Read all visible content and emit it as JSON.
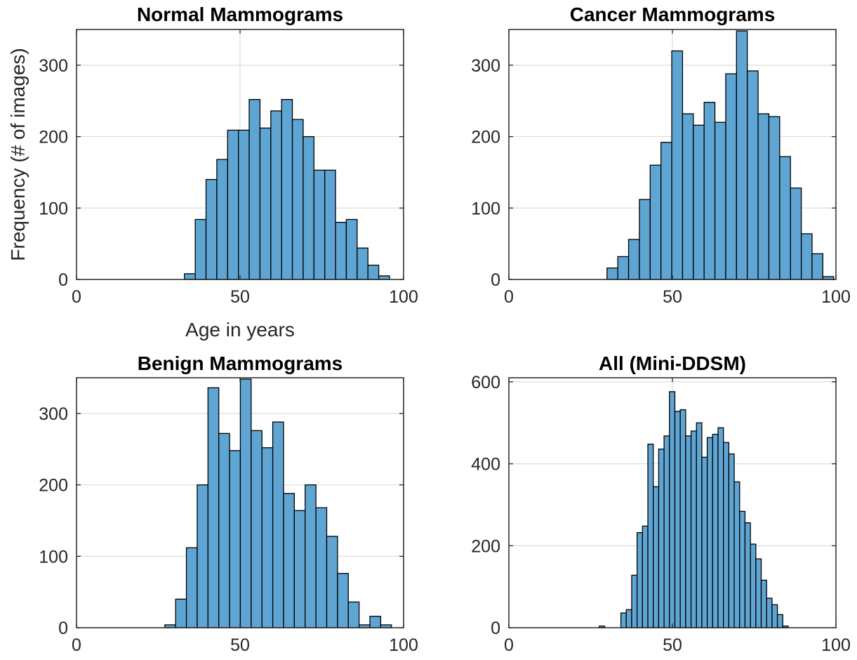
{
  "figure": {
    "ylabel": "Frequency (# of images)",
    "xlabel": "Age in years",
    "bar_color": "#5fa5d4",
    "bar_edge_color": "#000000",
    "grid": true
  },
  "chart_data": [
    {
      "type": "bar",
      "title": "Normal Mammograms",
      "xlabel": "Age in years",
      "ylabel": "Frequency (# of images)",
      "xlim": [
        0,
        100
      ],
      "ylim": [
        0,
        350
      ],
      "xticks": [
        0,
        50,
        100
      ],
      "yticks": [
        0,
        100,
        200,
        300
      ],
      "bins": {
        "start": 33,
        "width": 3.3
      },
      "values": [
        8,
        84,
        140,
        168,
        209,
        209,
        252,
        212,
        236,
        252,
        224,
        200,
        153,
        153,
        80,
        84,
        44,
        20,
        5
      ]
    },
    {
      "type": "bar",
      "title": "Cancer Mammograms",
      "xlabel": "",
      "ylabel": "",
      "xlim": [
        0,
        100
      ],
      "ylim": [
        0,
        350
      ],
      "xticks": [
        0,
        50,
        100
      ],
      "yticks": [
        0,
        100,
        200,
        300
      ],
      "bins": {
        "start": 30,
        "width": 3.3
      },
      "values": [
        16,
        32,
        56,
        112,
        160,
        192,
        320,
        232,
        216,
        248,
        220,
        288,
        348,
        292,
        232,
        228,
        172,
        128,
        64,
        36,
        4
      ]
    },
    {
      "type": "bar",
      "title": "Benign Mammograms",
      "xlabel": "",
      "ylabel": "",
      "xlim": [
        0,
        100
      ],
      "ylim": [
        0,
        350
      ],
      "xticks": [
        0,
        50,
        100
      ],
      "yticks": [
        0,
        100,
        200,
        300
      ],
      "bins": {
        "start": 27,
        "width": 3.3
      },
      "values": [
        4,
        40,
        112,
        200,
        336,
        272,
        248,
        348,
        276,
        252,
        288,
        188,
        164,
        200,
        168,
        128,
        76,
        36,
        4,
        16,
        4
      ]
    },
    {
      "type": "bar",
      "title": "All (Mini-DDSM)",
      "xlabel": "",
      "ylabel": "",
      "xlim": [
        0,
        100
      ],
      "ylim": [
        0,
        610
      ],
      "xticks": [
        0,
        50,
        100
      ],
      "yticks": [
        0,
        200,
        400,
        600
      ],
      "bins": {
        "start": 26,
        "width": 1.65
      },
      "values": [
        0,
        4,
        0,
        0,
        0,
        36,
        44,
        128,
        232,
        248,
        448,
        344,
        436,
        468,
        576,
        528,
        532,
        468,
        480,
        500,
        416,
        464,
        472,
        488,
        452,
        424,
        356,
        284,
        256,
        204,
        168,
        116,
        72,
        56,
        32,
        4
      ]
    }
  ]
}
